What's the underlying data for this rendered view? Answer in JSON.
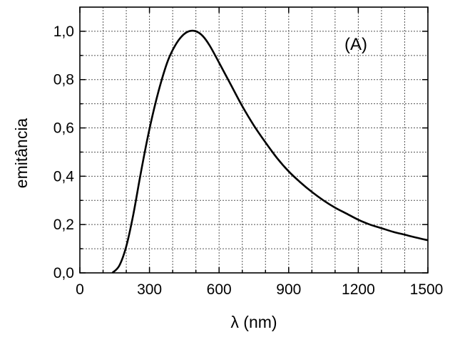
{
  "chart_data": {
    "type": "line",
    "xlabel": "λ (nm)",
    "ylabel": "emitância",
    "annotation": "(A)",
    "xlim": [
      0,
      1500
    ],
    "ylim": [
      0,
      1.1
    ],
    "x_ticks": [
      0,
      300,
      600,
      900,
      1200,
      1500
    ],
    "x_tick_labels": [
      "0",
      "300",
      "600",
      "900",
      "1200",
      "1500"
    ],
    "y_ticks": [
      0,
      0.2,
      0.4,
      0.6,
      0.8,
      1.0
    ],
    "y_tick_labels": [
      "0,0",
      "0,2",
      "0,4",
      "0,6",
      "0,8",
      "1,0"
    ],
    "x_minor_step": 100,
    "y_minor_step": 0.1,
    "grid": true,
    "series": [
      {
        "x": [
          140,
          170,
          200,
          230,
          260,
          290,
          320,
          350,
          380,
          410,
          440,
          470,
          500,
          530,
          560,
          600,
          650,
          700,
          750,
          800,
          850,
          900,
          950,
          1000,
          1050,
          1100,
          1150,
          1200,
          1250,
          1300,
          1350,
          1400,
          1450,
          1500
        ],
        "y": [
          0.0,
          0.03,
          0.11,
          0.24,
          0.4,
          0.55,
          0.68,
          0.79,
          0.88,
          0.94,
          0.98,
          1.0,
          1.0,
          0.98,
          0.94,
          0.87,
          0.78,
          0.69,
          0.61,
          0.54,
          0.475,
          0.42,
          0.375,
          0.335,
          0.3,
          0.27,
          0.245,
          0.22,
          0.2,
          0.185,
          0.17,
          0.158,
          0.146,
          0.135
        ]
      }
    ],
    "line_color": "#000000"
  }
}
